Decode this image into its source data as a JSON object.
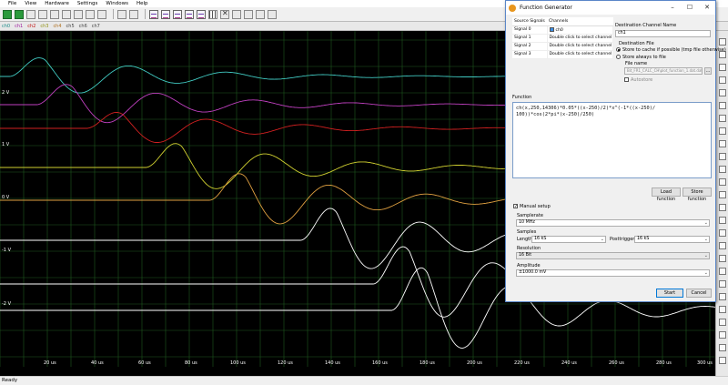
{
  "menu": [
    "File",
    "View",
    "Hardware",
    "Settings",
    "Windows",
    "Help"
  ],
  "channels": [
    {
      "label": "ch0",
      "color": "#40c8c0"
    },
    {
      "label": "ch1",
      "color": "#c040c0"
    },
    {
      "label": "ch2",
      "color": "#d02020"
    },
    {
      "label": "ch3",
      "color": "#d0d030"
    },
    {
      "label": "ch4",
      "color": "#e0a040"
    },
    {
      "label": "ch5",
      "color": "#ffffff"
    },
    {
      "label": "ch6",
      "color": "#ffffff"
    },
    {
      "label": "ch7",
      "color": "#ffffff"
    }
  ],
  "y_axis_labels": [
    "2 V",
    "1 V",
    "0 V",
    "-1 V",
    "-2 V"
  ],
  "x_axis_labels": [
    "20 us",
    "40 us",
    "60 us",
    "80 us",
    "100 us",
    "120 us",
    "140 us",
    "160 us",
    "180 us",
    "200 us",
    "220 us",
    "240 us",
    "260 us",
    "280 us",
    "300 us"
  ],
  "status": "Ready",
  "dialog": {
    "title": "Function Generator",
    "source_signals_header": "Source Signals",
    "channels_header": "Channels",
    "signals": [
      {
        "name": "Signal 0",
        "channel": "ch0",
        "checked": true
      },
      {
        "name": "Signal 1",
        "channel": "Double click to select channel"
      },
      {
        "name": "Signal 2",
        "channel": "Double click to select channel"
      },
      {
        "name": "Signal 3",
        "channel": "Double click to select channel"
      }
    ],
    "dest_channel_label": "Destination Channel Name",
    "dest_channel_value": "ch1",
    "dest_file_label": "Destination File",
    "opt_cache": "Store to cache if possible (tmp file otherwise)",
    "opt_file": "Store always to file",
    "file_name_label": "File name",
    "file_name_value": "Bit_FR1_CALC_CH\\plot_function_1.dat.dat",
    "autostore_label": "Autostore",
    "function_label": "Function",
    "function_text": "ch(x,250,14306)*0.05*((x-250)/2)*x^(-1*((x-250)/\n100))*cos(2*pi*(x-250)/250)",
    "load_function": "Load function",
    "store_function": "Store function",
    "manual_setup": "Manual setup",
    "samplerate_label": "Samplerate",
    "samplerate_value": "10 MHz",
    "samples_label": "Samples",
    "length_label": "Length",
    "length_value": "16 kS",
    "posttrigger_label": "Posttrigger",
    "posttrigger_value": "16 kS",
    "resolution_label": "Resolution",
    "resolution_value": "16 Bit",
    "amplitude_label": "Amplitude",
    "amplitude_value": "±1000.0 mV",
    "start": "Start",
    "cancel": "Cancel"
  }
}
